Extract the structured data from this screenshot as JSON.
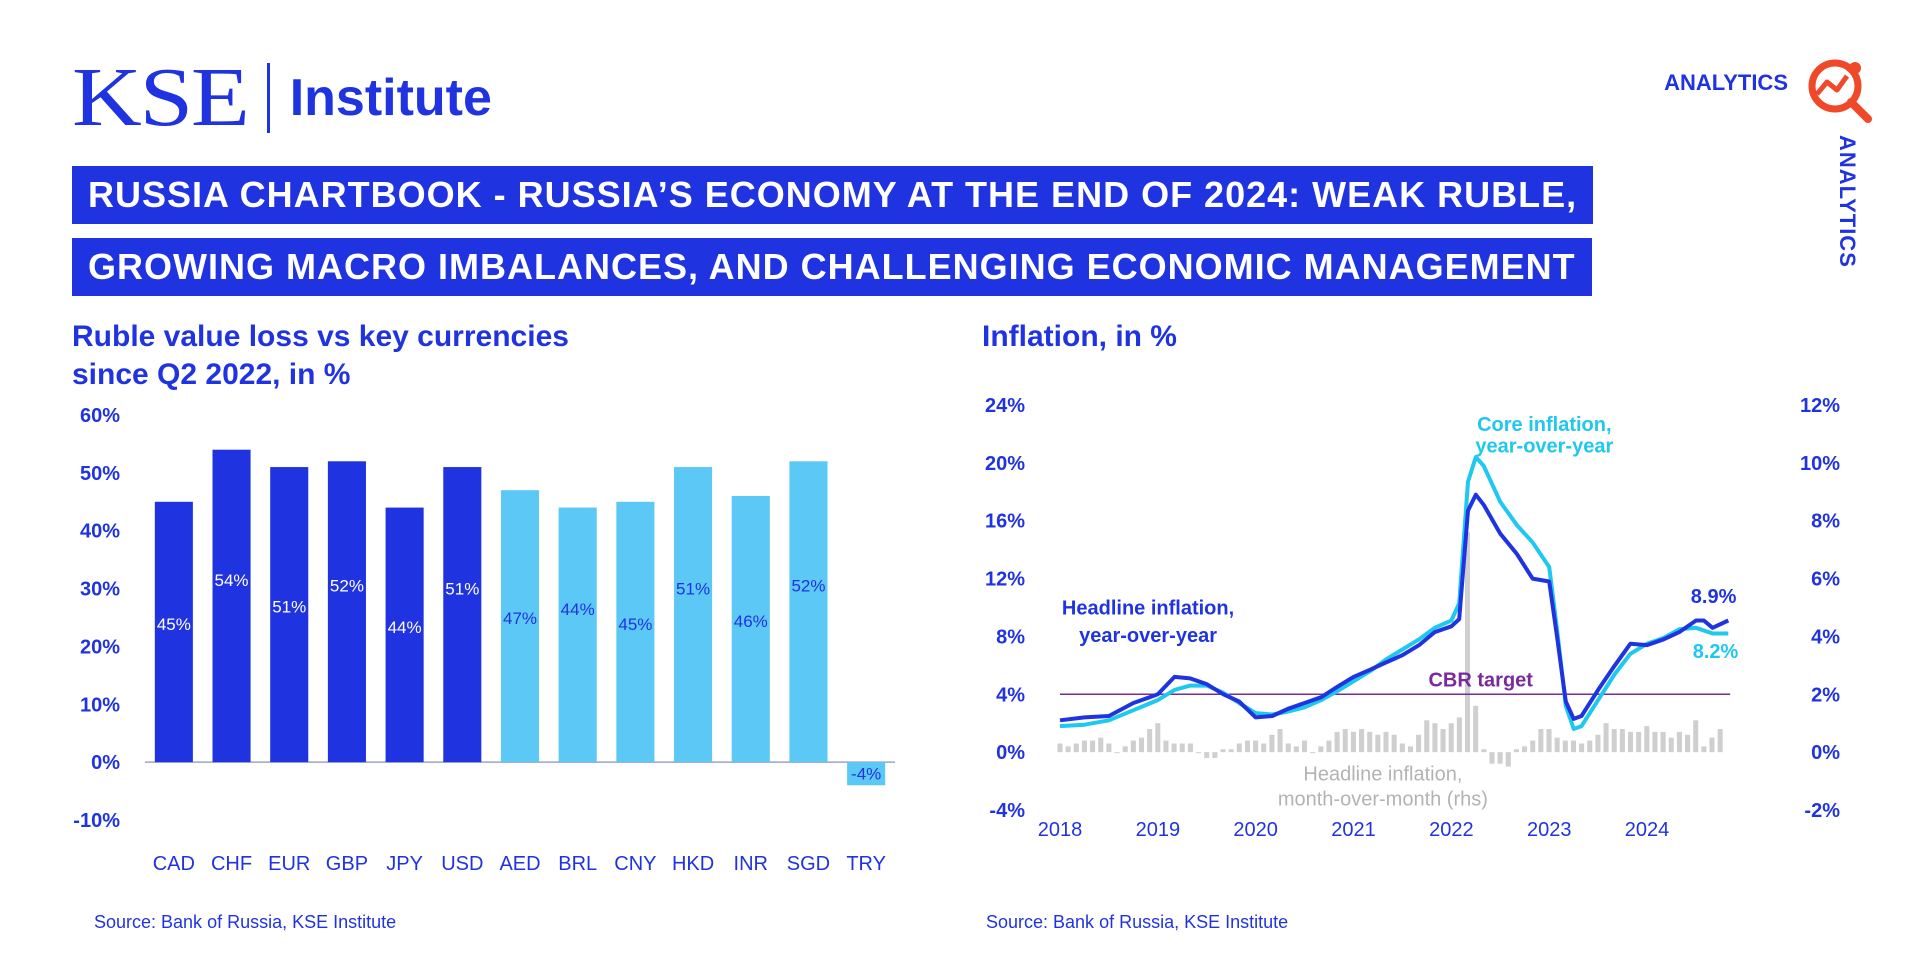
{
  "brand": {
    "logo_name": "KSE",
    "logo_sub": "Institute",
    "analytics_label": "ANALYTICS",
    "analytics_vertical": "ANALYTICS",
    "analytics_icon": "magnifier-chart-icon"
  },
  "banner": {
    "line1": "RUSSIA CHARTBOOK - RUSSIA’S ECONOMY AT THE END OF 2024: WEAK RUBLE,",
    "line2": "GROWING MACRO IMBALANCES, AND CHALLENGING ECONOMIC MANAGEMENT"
  },
  "colors": {
    "brand_blue": "#2033e0",
    "light_blue": "#5bc8f5",
    "core_line": "#1ec8ef",
    "cbr_target": "#7a2a9a",
    "mom_bar": "#cfcfcf"
  },
  "chart_data": [
    {
      "type": "bar",
      "title_line1": "Ruble value loss vs key currencies",
      "title_line2": "since Q2 2022, in %",
      "categories": [
        "CAD",
        "CHF",
        "EUR",
        "GBP",
        "JPY",
        "USD",
        "AED",
        "BRL",
        "CNY",
        "HKD",
        "INR",
        "SGD",
        "TRY"
      ],
      "values": [
        45,
        54,
        51,
        52,
        44,
        51,
        47,
        44,
        45,
        51,
        46,
        52,
        -4
      ],
      "data_labels": [
        "45%",
        "54%",
        "51%",
        "52%",
        "44%",
        "51%",
        "47%",
        "44%",
        "45%",
        "51%",
        "46%",
        "52%",
        "-4%"
      ],
      "colors": [
        "#2033e0",
        "#2033e0",
        "#2033e0",
        "#2033e0",
        "#2033e0",
        "#2033e0",
        "#5bc8f5",
        "#5bc8f5",
        "#5bc8f5",
        "#5bc8f5",
        "#5bc8f5",
        "#5bc8f5",
        "#5bc8f5"
      ],
      "ylim": [
        -10,
        60
      ],
      "yticks": [
        "-10%",
        "0%",
        "10%",
        "20%",
        "30%",
        "40%",
        "50%",
        "60%"
      ],
      "source": "Source: Bank of Russia, KSE Institute"
    },
    {
      "type": "line",
      "title": "Inflation, in %",
      "x_ticks": [
        "2018",
        "2019",
        "2020",
        "2021",
        "2022",
        "2023",
        "2024"
      ],
      "xlim": [
        2018,
        2024.95
      ],
      "ylim_left": [
        -4,
        24
      ],
      "ylim_right": [
        -2,
        12
      ],
      "yticks_left": [
        "-4%",
        "0%",
        "4%",
        "8%",
        "12%",
        "16%",
        "20%",
        "24%"
      ],
      "yticks_right": [
        "-2%",
        "0%",
        "2%",
        "4%",
        "6%",
        "8%",
        "10%",
        "12%"
      ],
      "cbr_target": {
        "value": 4,
        "label": "CBR target"
      },
      "series": [
        {
          "name": "Headline inflation, year-over-year",
          "label_line1": "Headline inflation,",
          "label_line2": "year-over-year",
          "axis": "left",
          "end_label": "8.9%",
          "points": [
            [
              2018.0,
              2.2
            ],
            [
              2018.25,
              2.4
            ],
            [
              2018.5,
              2.5
            ],
            [
              2018.75,
              3.4
            ],
            [
              2019.0,
              4.0
            ],
            [
              2019.17,
              5.2
            ],
            [
              2019.33,
              5.1
            ],
            [
              2019.5,
              4.7
            ],
            [
              2019.67,
              4.0
            ],
            [
              2019.83,
              3.5
            ],
            [
              2020.0,
              2.4
            ],
            [
              2020.17,
              2.5
            ],
            [
              2020.33,
              3.0
            ],
            [
              2020.5,
              3.4
            ],
            [
              2020.67,
              3.8
            ],
            [
              2020.83,
              4.5
            ],
            [
              2021.0,
              5.2
            ],
            [
              2021.17,
              5.7
            ],
            [
              2021.33,
              6.2
            ],
            [
              2021.5,
              6.7
            ],
            [
              2021.67,
              7.4
            ],
            [
              2021.83,
              8.3
            ],
            [
              2022.0,
              8.7
            ],
            [
              2022.08,
              9.2
            ],
            [
              2022.17,
              16.7
            ],
            [
              2022.25,
              17.8
            ],
            [
              2022.33,
              17.1
            ],
            [
              2022.5,
              15.1
            ],
            [
              2022.67,
              13.7
            ],
            [
              2022.83,
              12.0
            ],
            [
              2023.0,
              11.8
            ],
            [
              2023.08,
              8.0
            ],
            [
              2023.17,
              3.5
            ],
            [
              2023.25,
              2.3
            ],
            [
              2023.33,
              2.5
            ],
            [
              2023.5,
              4.3
            ],
            [
              2023.67,
              6.0
            ],
            [
              2023.83,
              7.5
            ],
            [
              2024.0,
              7.4
            ],
            [
              2024.17,
              7.8
            ],
            [
              2024.33,
              8.3
            ],
            [
              2024.5,
              9.1
            ],
            [
              2024.58,
              9.1
            ],
            [
              2024.67,
              8.6
            ],
            [
              2024.83,
              9.1
            ]
          ]
        },
        {
          "name": "Core inflation, year-over-year",
          "label_line1": "Core inflation,",
          "label_line2": "year-over-year",
          "axis": "left",
          "end_label": "8.2%",
          "points": [
            [
              2018.0,
              1.8
            ],
            [
              2018.25,
              1.9
            ],
            [
              2018.5,
              2.2
            ],
            [
              2018.75,
              2.9
            ],
            [
              2019.0,
              3.6
            ],
            [
              2019.17,
              4.3
            ],
            [
              2019.33,
              4.6
            ],
            [
              2019.5,
              4.6
            ],
            [
              2019.67,
              4.1
            ],
            [
              2019.83,
              3.4
            ],
            [
              2020.0,
              2.7
            ],
            [
              2020.17,
              2.6
            ],
            [
              2020.33,
              2.8
            ],
            [
              2020.5,
              3.1
            ],
            [
              2020.67,
              3.6
            ],
            [
              2020.83,
              4.2
            ],
            [
              2021.0,
              4.9
            ],
            [
              2021.17,
              5.6
            ],
            [
              2021.33,
              6.4
            ],
            [
              2021.5,
              7.1
            ],
            [
              2021.67,
              7.8
            ],
            [
              2021.83,
              8.6
            ],
            [
              2022.0,
              9.1
            ],
            [
              2022.08,
              10.3
            ],
            [
              2022.17,
              18.7
            ],
            [
              2022.25,
              20.4
            ],
            [
              2022.33,
              19.8
            ],
            [
              2022.5,
              17.3
            ],
            [
              2022.67,
              15.7
            ],
            [
              2022.83,
              14.5
            ],
            [
              2023.0,
              12.8
            ],
            [
              2023.08,
              8.5
            ],
            [
              2023.17,
              3.2
            ],
            [
              2023.25,
              1.6
            ],
            [
              2023.33,
              1.8
            ],
            [
              2023.5,
              3.6
            ],
            [
              2023.67,
              5.4
            ],
            [
              2023.83,
              6.8
            ],
            [
              2024.0,
              7.5
            ],
            [
              2024.17,
              7.9
            ],
            [
              2024.33,
              8.5
            ],
            [
              2024.5,
              8.6
            ],
            [
              2024.67,
              8.2
            ],
            [
              2024.83,
              8.2
            ]
          ]
        },
        {
          "name": "Headline inflation, month-over-month (rhs)",
          "label_line1": "Headline inflation,",
          "label_line2": "month-over-month (rhs)",
          "axis": "right",
          "type": "bar",
          "start": 2018.0,
          "step": 0.0833,
          "values": [
            0.3,
            0.2,
            0.3,
            0.4,
            0.4,
            0.5,
            0.3,
            0.0,
            0.2,
            0.4,
            0.5,
            0.8,
            1.0,
            0.4,
            0.3,
            0.3,
            0.3,
            0.0,
            -0.2,
            -0.2,
            0.1,
            0.1,
            0.3,
            0.4,
            0.4,
            0.3,
            0.6,
            0.8,
            0.3,
            0.2,
            0.4,
            0.0,
            0.2,
            0.4,
            0.7,
            0.8,
            0.7,
            0.8,
            0.7,
            0.6,
            0.7,
            0.6,
            0.3,
            0.2,
            0.6,
            1.1,
            1.0,
            0.8,
            1.0,
            1.2,
            7.6,
            1.6,
            0.1,
            -0.4,
            -0.4,
            -0.5,
            0.1,
            0.2,
            0.4,
            0.8,
            0.8,
            0.5,
            0.4,
            0.4,
            0.3,
            0.4,
            0.6,
            1.0,
            0.8,
            0.8,
            0.7,
            0.7,
            0.9,
            0.7,
            0.7,
            0.5,
            0.7,
            0.6,
            1.1,
            0.2,
            0.5,
            0.8
          ]
        }
      ],
      "source": "Source: Bank of Russia, KSE Institute"
    }
  ]
}
